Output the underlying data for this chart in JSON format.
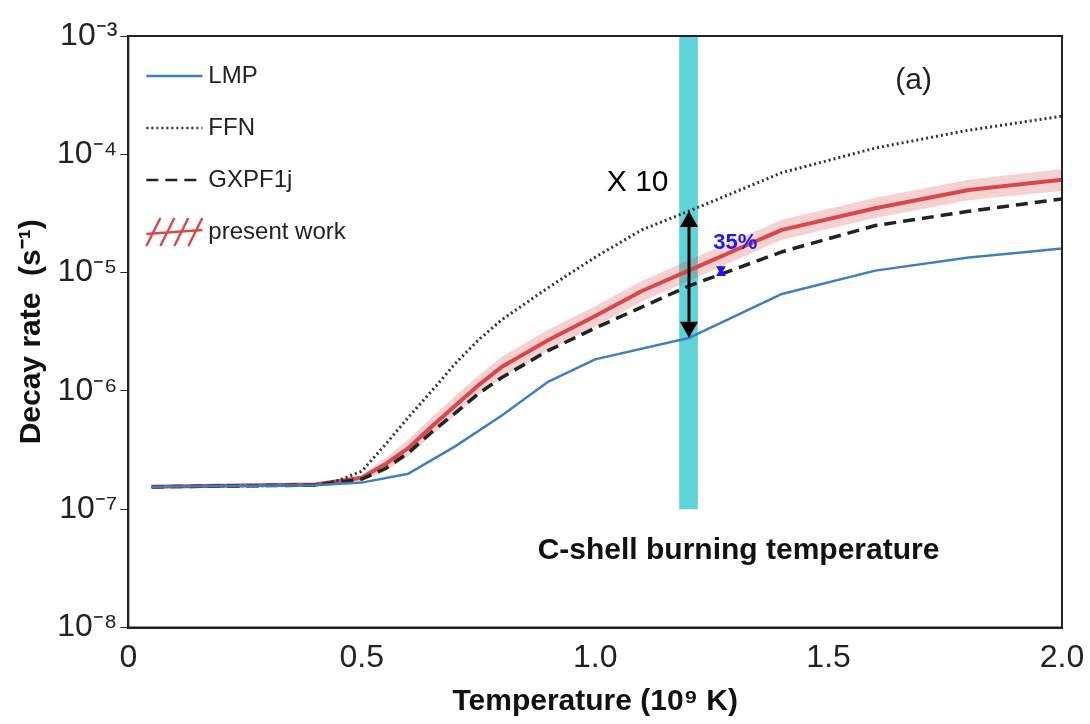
{
  "chart_data": {
    "type": "line",
    "xlabel": "Temperature (10⁹ K)",
    "ylabel": "Decay rate  (s⁻¹)",
    "log": "y",
    "legend": "top left",
    "xlim": [
      0,
      2
    ],
    "xticks": [
      0,
      0.5,
      {
        "value": 1,
        "label": "1.0"
      },
      1.5,
      {
        "value": 2,
        "label": "2.0"
      }
    ],
    "ylim": [
      1e-08,
      0.001
    ],
    "yticks": [
      {
        "value": 1e-08,
        "label": "10⁻⁸"
      },
      {
        "value": 1e-07,
        "label": "10⁻⁷"
      },
      {
        "value": 1e-06,
        "label": "10⁻⁶"
      },
      {
        "value": 1e-05,
        "label": "10⁻⁵"
      },
      {
        "value": 0.0001,
        "label": "10⁻⁴"
      },
      {
        "value": 0.001,
        "label": "10⁻³"
      }
    ],
    "series": [
      {
        "name": "LMP",
        "color": "#3f7fc1",
        "line_style": "solid",
        "x": [
          0.05,
          0.4,
          0.5,
          0.6,
          0.7,
          0.8,
          0.9,
          1.0,
          1.2,
          1.4,
          1.6,
          1.8,
          2.0
        ],
        "values": [
          1.55e-07,
          1.6e-07,
          1.68e-07,
          2e-07,
          3.4e-07,
          6.2e-07,
          1.2e-06,
          1.85e-06,
          2.8e-06,
          6.6e-06,
          1.04e-05,
          1.34e-05,
          1.6e-05
        ]
      },
      {
        "name": "FFN",
        "color": "#333333",
        "line_style": "dotted",
        "x": [
          0.05,
          0.4,
          0.45,
          0.5,
          0.55,
          0.6,
          0.65,
          0.7,
          0.75,
          0.8,
          0.9,
          1.0,
          1.1,
          1.2,
          1.4,
          1.6,
          1.8,
          2.0
        ],
        "values": [
          1.55e-07,
          1.6e-07,
          1.75e-07,
          2.1e-07,
          3.5e-07,
          6e-07,
          1e-06,
          1.7e-06,
          2.7e-06,
          4e-06,
          7.5e-06,
          1.35e-05,
          2.3e-05,
          3.3e-05,
          7e-05,
          0.000113,
          0.00016,
          0.00021
        ]
      },
      {
        "name": "GXPF1j",
        "color": "#222222",
        "line_style": "dashed",
        "x": [
          0.05,
          0.4,
          0.5,
          0.55,
          0.6,
          0.65,
          0.7,
          0.75,
          0.8,
          0.9,
          1.0,
          1.2,
          1.4,
          1.6,
          1.8,
          2.0
        ],
        "values": [
          1.55e-07,
          1.6e-07,
          1.8e-07,
          2.2e-07,
          3e-07,
          4.5e-07,
          6.5e-07,
          9.5e-07,
          1.3e-06,
          2.2e-06,
          3.4e-06,
          7.7e-06,
          1.5e-05,
          2.5e-05,
          3.3e-05,
          4.2e-05
        ]
      },
      {
        "name": "present work",
        "color": "#d9494a",
        "line_style": "solid",
        "x": [
          0.05,
          0.4,
          0.5,
          0.55,
          0.6,
          0.65,
          0.7,
          0.75,
          0.8,
          0.9,
          1.0,
          1.1,
          1.2,
          1.4,
          1.6,
          1.8,
          2.0
        ],
        "values": [
          1.55e-07,
          1.62e-07,
          1.85e-07,
          2.4e-07,
          3.3e-07,
          5e-07,
          7.5e-07,
          1.12e-06,
          1.6e-06,
          2.7e-06,
          4.3e-06,
          7e-06,
          1.04e-05,
          2.3e-05,
          3.5e-05,
          5e-05,
          6.1e-05
        ],
        "lower": [
          1.55e-07,
          1.6e-07,
          1.75e-07,
          2.1e-07,
          2.8e-07,
          4.2e-07,
          6.2e-07,
          9.2e-07,
          1.3e-06,
          2.2e-06,
          3.5e-06,
          5.7e-06,
          8.5e-06,
          1.9e-05,
          2.9e-05,
          4.1e-05,
          4.9e-05
        ],
        "upper": [
          1.55e-07,
          1.65e-07,
          1.95e-07,
          2.7e-07,
          3.9e-07,
          6e-07,
          9e-07,
          1.35e-06,
          1.95e-06,
          3.3e-06,
          5.2e-06,
          8.5e-06,
          1.27e-05,
          2.8e-05,
          4.3e-05,
          6.1e-05,
          7.5e-05
        ]
      }
    ],
    "bands": [
      {
        "axis": "x",
        "from": 1.18,
        "to": 1.22,
        "label": "C-shell burning temperature",
        "color": "#5fd3d8"
      }
    ],
    "annotations": [
      "(a)",
      {
        "text": "X 10",
        "x": 1.2,
        "y": 3.3e-05
      },
      {
        "text": "35%",
        "x": 1.27,
        "y": 1.1e-05
      }
    ]
  }
}
